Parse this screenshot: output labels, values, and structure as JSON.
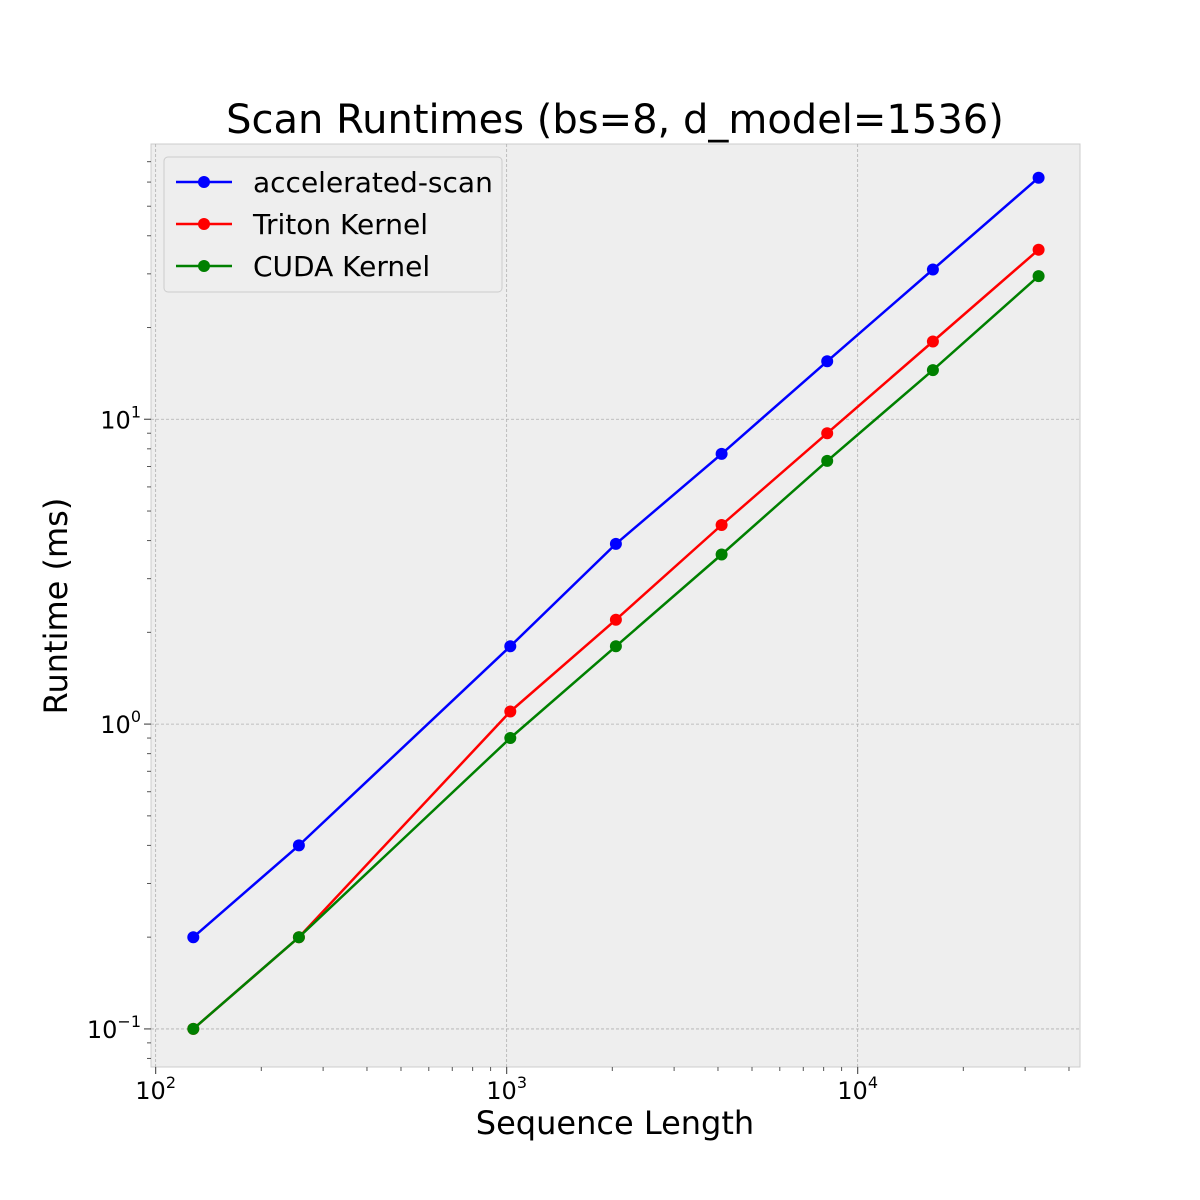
{
  "chart_data": {
    "type": "line",
    "title": "Scan Runtimes (bs=8, d_model=1536)",
    "xlabel": "Sequence Length",
    "ylabel": "Runtime (ms)",
    "xscale": "log",
    "yscale": "log",
    "xlim": [
      97,
      43000
    ],
    "ylim": [
      0.075,
      80
    ],
    "grid": true,
    "legend_position": "top-left",
    "background_color": "#eeeeee",
    "x_ticks": [
      {
        "value": 100,
        "base": "10",
        "exponent": "2"
      },
      {
        "value": 1000,
        "base": "10",
        "exponent": "3"
      },
      {
        "value": 10000,
        "base": "10",
        "exponent": "4"
      }
    ],
    "y_ticks": [
      {
        "value": 0.1,
        "base": "10",
        "exponent": "−1"
      },
      {
        "value": 1,
        "base": "10",
        "exponent": "0"
      },
      {
        "value": 10,
        "base": "10",
        "exponent": "1"
      }
    ],
    "x": [
      128,
      256,
      1024,
      2048,
      4096,
      8192,
      16384,
      32768
    ],
    "series": [
      {
        "name": "accelerated-scan",
        "color": "#0000ff",
        "values": [
          0.2,
          0.4,
          1.8,
          3.9,
          7.7,
          15.5,
          31,
          62
        ]
      },
      {
        "name": "Triton Kernel",
        "color": "#ff0000",
        "values": [
          0.1,
          0.2,
          1.1,
          2.2,
          4.5,
          9.0,
          18,
          36
        ]
      },
      {
        "name": "CUDA Kernel",
        "color": "#008000",
        "values": [
          0.1,
          0.2,
          0.9,
          1.8,
          3.6,
          7.3,
          14.5,
          29.5
        ]
      }
    ]
  }
}
